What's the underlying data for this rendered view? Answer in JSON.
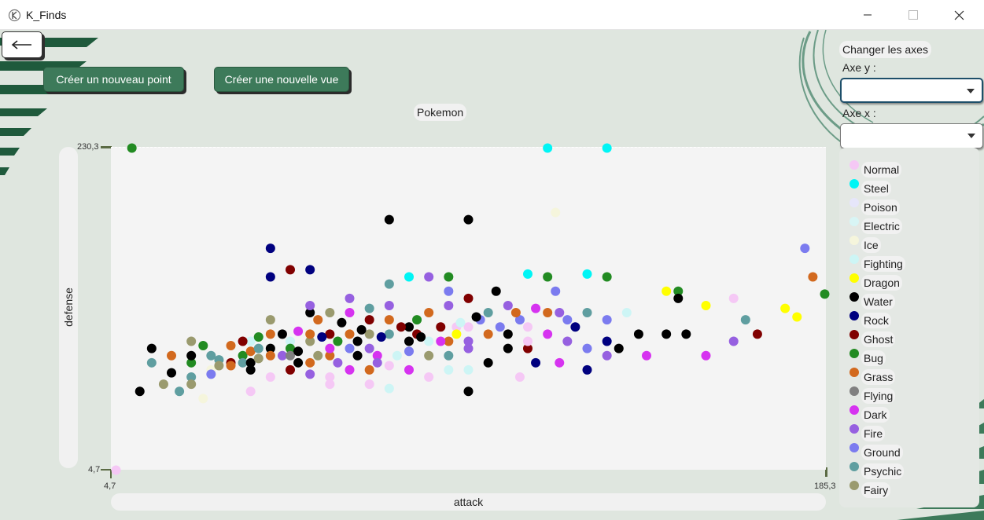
{
  "window": {
    "title": "K_Finds",
    "minimize": "—",
    "maximize": "☐",
    "close": "✕"
  },
  "icons": {
    "app": "app-logo-icon",
    "back": "arrow-left-icon",
    "caret": "chevron-down-icon"
  },
  "colors": {
    "accent": "#3d7a5a",
    "deco": "#1f5a3c"
  },
  "toolbar": {
    "back_label": "←",
    "new_point_label": "Créer un nouveau point",
    "new_view_label": "Créer une nouvelle vue"
  },
  "side_panel": {
    "section_title": "Changer les axes",
    "y_axis_label": "Axe y :",
    "x_axis_label": "Axe x :",
    "y_axis_value": "",
    "x_axis_value": ""
  },
  "chart_data": {
    "type": "scatter",
    "title": "Pokemon",
    "xlabel": "attack",
    "ylabel": "defense",
    "xlim": [
      4.7,
      185.3
    ],
    "ylim": [
      4.7,
      230.3
    ],
    "xtick_labels": [
      "4,7",
      "185,3"
    ],
    "ytick_labels": [
      "4,7",
      "230,3"
    ],
    "grid": false,
    "legend_position": "right",
    "legend": [
      {
        "name": "Normal",
        "color": "#f5c8f5"
      },
      {
        "name": "Steel",
        "color": "#00f5f5"
      },
      {
        "name": "Poison",
        "color": "#e6e6fa"
      },
      {
        "name": "Electric",
        "color": "#d8f5f5"
      },
      {
        "name": "Ice",
        "color": "#f5f5dc"
      },
      {
        "name": "Fighting",
        "color": "#cdf5f5"
      },
      {
        "name": "Dragon",
        "color": "#ffff00"
      },
      {
        "name": "Water",
        "color": "#000000"
      },
      {
        "name": "Rock",
        "color": "#00007f"
      },
      {
        "name": "Ghost",
        "color": "#800000"
      },
      {
        "name": "Bug",
        "color": "#228b22"
      },
      {
        "name": "Grass",
        "color": "#d2691e"
      },
      {
        "name": "Flying",
        "color": "#808080"
      },
      {
        "name": "Dark",
        "color": "#d633f0"
      },
      {
        "name": "Fire",
        "color": "#9660e0"
      },
      {
        "name": "Ground",
        "color": "#7b7bef"
      },
      {
        "name": "Psychic",
        "color": "#5f9ea0"
      },
      {
        "name": "Fairy",
        "color": "#9a9a6e"
      }
    ],
    "points": [
      {
        "x": 10,
        "y": 230,
        "t": "Bug"
      },
      {
        "x": 115,
        "y": 230,
        "t": "Steel"
      },
      {
        "x": 130,
        "y": 230,
        "t": "Steel"
      },
      {
        "x": 75,
        "y": 180,
        "t": "Water"
      },
      {
        "x": 95,
        "y": 180,
        "t": "Water"
      },
      {
        "x": 117,
        "y": 185,
        "t": "Ice"
      },
      {
        "x": 45,
        "y": 160,
        "t": "Rock"
      },
      {
        "x": 180,
        "y": 160,
        "t": "Ground"
      },
      {
        "x": 45,
        "y": 140,
        "t": "Rock"
      },
      {
        "x": 50,
        "y": 145,
        "t": "Ghost"
      },
      {
        "x": 55,
        "y": 145,
        "t": "Rock"
      },
      {
        "x": 80,
        "y": 140,
        "t": "Steel"
      },
      {
        "x": 85,
        "y": 140,
        "t": "Fire"
      },
      {
        "x": 90,
        "y": 140,
        "t": "Bug"
      },
      {
        "x": 110,
        "y": 142,
        "t": "Steel"
      },
      {
        "x": 115,
        "y": 140,
        "t": "Bug"
      },
      {
        "x": 130,
        "y": 140,
        "t": "Bug"
      },
      {
        "x": 125,
        "y": 142,
        "t": "Steel"
      },
      {
        "x": 15,
        "y": 90,
        "t": "Water"
      },
      {
        "x": 20,
        "y": 73,
        "t": "Water"
      },
      {
        "x": 25,
        "y": 70,
        "t": "Psychic"
      },
      {
        "x": 30,
        "y": 75,
        "t": "Ice"
      },
      {
        "x": 25,
        "y": 80,
        "t": "Bug"
      },
      {
        "x": 25,
        "y": 85,
        "t": "Water"
      },
      {
        "x": 25,
        "y": 95,
        "t": "Fairy"
      },
      {
        "x": 28,
        "y": 92,
        "t": "Bug"
      },
      {
        "x": 30,
        "y": 85,
        "t": "Psychic"
      },
      {
        "x": 32,
        "y": 82,
        "t": "Psychic"
      },
      {
        "x": 32,
        "y": 78,
        "t": "Fairy"
      },
      {
        "x": 35,
        "y": 92,
        "t": "Grass"
      },
      {
        "x": 35,
        "y": 80,
        "t": "Ghost"
      },
      {
        "x": 38,
        "y": 85,
        "t": "Bug"
      },
      {
        "x": 38,
        "y": 80,
        "t": "Psychic"
      },
      {
        "x": 40,
        "y": 88,
        "t": "Grass"
      },
      {
        "x": 40,
        "y": 80,
        "t": "Water"
      },
      {
        "x": 42,
        "y": 83,
        "t": "Fairy"
      },
      {
        "x": 40,
        "y": 95,
        "t": "Fighting"
      },
      {
        "x": 42,
        "y": 90,
        "t": "Psychic"
      },
      {
        "x": 45,
        "y": 90,
        "t": "Water"
      },
      {
        "x": 45,
        "y": 85,
        "t": "Grass"
      },
      {
        "x": 45,
        "y": 100,
        "t": "Grass"
      },
      {
        "x": 45,
        "y": 110,
        "t": "Fairy"
      },
      {
        "x": 48,
        "y": 100,
        "t": "Water"
      },
      {
        "x": 48,
        "y": 85,
        "t": "Fire"
      },
      {
        "x": 50,
        "y": 95,
        "t": "Fighting"
      },
      {
        "x": 50,
        "y": 90,
        "t": "Bug"
      },
      {
        "x": 50,
        "y": 85,
        "t": "Flying"
      },
      {
        "x": 52,
        "y": 88,
        "t": "Water"
      },
      {
        "x": 52,
        "y": 80,
        "t": "Water"
      },
      {
        "x": 55,
        "y": 80,
        "t": "Grass"
      },
      {
        "x": 55,
        "y": 95,
        "t": "Fairy"
      },
      {
        "x": 55,
        "y": 100,
        "t": "Grass"
      },
      {
        "x": 55,
        "y": 115,
        "t": "Water"
      },
      {
        "x": 55,
        "y": 120,
        "t": "Fire"
      },
      {
        "x": 57,
        "y": 85,
        "t": "Fairy"
      },
      {
        "x": 57,
        "y": 110,
        "t": "Grass"
      },
      {
        "x": 60,
        "y": 85,
        "t": "Grass"
      },
      {
        "x": 60,
        "y": 90,
        "t": "Dark"
      },
      {
        "x": 60,
        "y": 100,
        "t": "Ghost"
      },
      {
        "x": 60,
        "y": 115,
        "t": "Fairy"
      },
      {
        "x": 62,
        "y": 80,
        "t": "Fire"
      },
      {
        "x": 62,
        "y": 95,
        "t": "Bug"
      },
      {
        "x": 65,
        "y": 90,
        "t": "Ground"
      },
      {
        "x": 65,
        "y": 100,
        "t": "Grass"
      },
      {
        "x": 65,
        "y": 115,
        "t": "Dark"
      },
      {
        "x": 65,
        "y": 125,
        "t": "Fire"
      },
      {
        "x": 67,
        "y": 95,
        "t": "Water"
      },
      {
        "x": 67,
        "y": 85,
        "t": "Water"
      },
      {
        "x": 70,
        "y": 90,
        "t": "Fire"
      },
      {
        "x": 70,
        "y": 100,
        "t": "Fairy"
      },
      {
        "x": 70,
        "y": 110,
        "t": "Ghost"
      },
      {
        "x": 70,
        "y": 118,
        "t": "Psychic"
      },
      {
        "x": 72,
        "y": 85,
        "t": "Dark"
      },
      {
        "x": 72,
        "y": 80,
        "t": "Fire"
      },
      {
        "x": 75,
        "y": 100,
        "t": "Psychic"
      },
      {
        "x": 75,
        "y": 110,
        "t": "Grass"
      },
      {
        "x": 75,
        "y": 120,
        "t": "Fire"
      },
      {
        "x": 75,
        "y": 135,
        "t": "Psychic"
      },
      {
        "x": 77,
        "y": 85,
        "t": "Fighting"
      },
      {
        "x": 80,
        "y": 95,
        "t": "Water"
      },
      {
        "x": 80,
        "y": 105,
        "t": "Water"
      },
      {
        "x": 80,
        "y": 88,
        "t": "Ground"
      },
      {
        "x": 82,
        "y": 110,
        "t": "Bug"
      },
      {
        "x": 82,
        "y": 100,
        "t": "Ghost"
      },
      {
        "x": 85,
        "y": 115,
        "t": "Grass"
      },
      {
        "x": 85,
        "y": 95,
        "t": "Fighting"
      },
      {
        "x": 85,
        "y": 85,
        "t": "Fairy"
      },
      {
        "x": 88,
        "y": 105,
        "t": "Ghost"
      },
      {
        "x": 90,
        "y": 95,
        "t": "Grass"
      },
      {
        "x": 90,
        "y": 85,
        "t": "Psychic"
      },
      {
        "x": 90,
        "y": 120,
        "t": "Fire"
      },
      {
        "x": 90,
        "y": 130,
        "t": "Ground"
      },
      {
        "x": 92,
        "y": 105,
        "t": "Normal"
      },
      {
        "x": 92,
        "y": 100,
        "t": "Dragon"
      },
      {
        "x": 95,
        "y": 90,
        "t": "Fire"
      },
      {
        "x": 95,
        "y": 95,
        "t": "Fire"
      },
      {
        "x": 95,
        "y": 105,
        "t": "Normal"
      },
      {
        "x": 95,
        "y": 125,
        "t": "Ghost"
      },
      {
        "x": 95,
        "y": 60,
        "t": "Water"
      },
      {
        "x": 98,
        "y": 110,
        "t": "Ground"
      },
      {
        "x": 100,
        "y": 100,
        "t": "Grass"
      },
      {
        "x": 100,
        "y": 115,
        "t": "Psychic"
      },
      {
        "x": 102,
        "y": 130,
        "t": "Water"
      },
      {
        "x": 105,
        "y": 100,
        "t": "Water"
      },
      {
        "x": 105,
        "y": 120,
        "t": "Fire"
      },
      {
        "x": 108,
        "y": 110,
        "t": "Ground"
      },
      {
        "x": 110,
        "y": 105,
        "t": "Normal"
      },
      {
        "x": 110,
        "y": 90,
        "t": "Ghost"
      },
      {
        "x": 110,
        "y": 95,
        "t": "Normal"
      },
      {
        "x": 112,
        "y": 80,
        "t": "Rock"
      },
      {
        "x": 115,
        "y": 100,
        "t": "Dark"
      },
      {
        "x": 115,
        "y": 115,
        "t": "Grass"
      },
      {
        "x": 117,
        "y": 130,
        "t": "Ground"
      },
      {
        "x": 120,
        "y": 110,
        "t": "Ground"
      },
      {
        "x": 120,
        "y": 95,
        "t": "Fire"
      },
      {
        "x": 122,
        "y": 105,
        "t": "Rock"
      },
      {
        "x": 125,
        "y": 115,
        "t": "Psychic"
      },
      {
        "x": 125,
        "y": 90,
        "t": "Ground"
      },
      {
        "x": 130,
        "y": 110,
        "t": "Ground"
      },
      {
        "x": 130,
        "y": 95,
        "t": "Rock"
      },
      {
        "x": 135,
        "y": 115,
        "t": "Fighting"
      },
      {
        "x": 138,
        "y": 100,
        "t": "Water"
      },
      {
        "x": 145,
        "y": 130,
        "t": "Dragon"
      },
      {
        "x": 148,
        "y": 130,
        "t": "Bug"
      },
      {
        "x": 148,
        "y": 125,
        "t": "Water"
      },
      {
        "x": 155,
        "y": 120,
        "t": "Dragon"
      },
      {
        "x": 162,
        "y": 125,
        "t": "Normal"
      },
      {
        "x": 162,
        "y": 95,
        "t": "Fire"
      },
      {
        "x": 165,
        "y": 110,
        "t": "Psychic"
      },
      {
        "x": 168,
        "y": 100,
        "t": "Ghost"
      },
      {
        "x": 178,
        "y": 112,
        "t": "Dragon"
      },
      {
        "x": 185,
        "y": 128,
        "t": "Bug"
      },
      {
        "x": 182,
        "y": 140,
        "t": "Grass"
      },
      {
        "x": 145,
        "y": 100,
        "t": "Water"
      },
      {
        "x": 140,
        "y": 85,
        "t": "Dark"
      },
      {
        "x": 133,
        "y": 90,
        "t": "Water"
      },
      {
        "x": 125,
        "y": 75,
        "t": "Rock"
      },
      {
        "x": 118,
        "y": 80,
        "t": "Dark"
      },
      {
        "x": 105,
        "y": 90,
        "t": "Water"
      },
      {
        "x": 100,
        "y": 80,
        "t": "Water"
      },
      {
        "x": 90,
        "y": 75,
        "t": "Fighting"
      },
      {
        "x": 85,
        "y": 70,
        "t": "Normal"
      },
      {
        "x": 80,
        "y": 75,
        "t": "Dark"
      },
      {
        "x": 75,
        "y": 78,
        "t": "Normal"
      },
      {
        "x": 70,
        "y": 75,
        "t": "Grass"
      },
      {
        "x": 65,
        "y": 75,
        "t": "Dark"
      },
      {
        "x": 60,
        "y": 70,
        "t": "Normal"
      },
      {
        "x": 55,
        "y": 72,
        "t": "Fire"
      },
      {
        "x": 50,
        "y": 75,
        "t": "Ghost"
      },
      {
        "x": 45,
        "y": 70,
        "t": "Normal"
      },
      {
        "x": 40,
        "y": 75,
        "t": "Water"
      },
      {
        "x": 35,
        "y": 78,
        "t": "Grass"
      },
      {
        "x": 30,
        "y": 72,
        "t": "Ground"
      },
      {
        "x": 20,
        "y": 85,
        "t": "Grass"
      },
      {
        "x": 15,
        "y": 80,
        "t": "Psychic"
      },
      {
        "x": 18,
        "y": 65,
        "t": "Fairy"
      },
      {
        "x": 22,
        "y": 60,
        "t": "Psychic"
      },
      {
        "x": 28,
        "y": 55,
        "t": "Ice"
      },
      {
        "x": 38,
        "y": 95,
        "t": "Ghost"
      },
      {
        "x": 42,
        "y": 98,
        "t": "Bug"
      },
      {
        "x": 52,
        "y": 102,
        "t": "Dark"
      },
      {
        "x": 58,
        "y": 98,
        "t": "Rock"
      },
      {
        "x": 63,
        "y": 108,
        "t": "Water"
      },
      {
        "x": 68,
        "y": 103,
        "t": "Water"
      },
      {
        "x": 73,
        "y": 98,
        "t": "Rock"
      },
      {
        "x": 78,
        "y": 105,
        "t": "Ghost"
      },
      {
        "x": 83,
        "y": 98,
        "t": "Water"
      },
      {
        "x": 88,
        "y": 95,
        "t": "Dark"
      },
      {
        "x": 93,
        "y": 108,
        "t": "Fighting"
      },
      {
        "x": 97,
        "y": 112,
        "t": "Water"
      },
      {
        "x": 103,
        "y": 105,
        "t": "Ground"
      },
      {
        "x": 107,
        "y": 115,
        "t": "Grass"
      },
      {
        "x": 112,
        "y": 118,
        "t": "Dark"
      },
      {
        "x": 118,
        "y": 115,
        "t": "Fire"
      },
      {
        "x": 12,
        "y": 60,
        "t": "Water"
      },
      {
        "x": 25,
        "y": 65,
        "t": "Fairy"
      },
      {
        "x": 40,
        "y": 60,
        "t": "Normal"
      },
      {
        "x": 60,
        "y": 65,
        "t": "Normal"
      },
      {
        "x": 70,
        "y": 65,
        "t": "Normal"
      },
      {
        "x": 75,
        "y": 62,
        "t": "Fighting"
      },
      {
        "x": 95,
        "y": 75,
        "t": "Fighting"
      },
      {
        "x": 108,
        "y": 70,
        "t": "Normal"
      },
      {
        "x": 130,
        "y": 85,
        "t": "Fire"
      },
      {
        "x": 150,
        "y": 100,
        "t": "Water"
      },
      {
        "x": 155,
        "y": 85,
        "t": "Dark"
      },
      {
        "x": 175,
        "y": 118,
        "t": "Dragon"
      },
      {
        "x": 6,
        "y": 5,
        "t": "Normal"
      }
    ]
  }
}
